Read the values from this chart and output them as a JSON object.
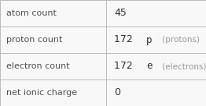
{
  "rows": [
    {
      "label": "atom count",
      "value_parts": [
        {
          "text": "45",
          "style": "normal",
          "color": "#303030"
        }
      ]
    },
    {
      "label": "proton count",
      "value_parts": [
        {
          "text": "172 ",
          "style": "normal",
          "color": "#303030"
        },
        {
          "text": "p",
          "style": "mono",
          "color": "#303030"
        },
        {
          "text": " (protons)",
          "style": "annotation",
          "color": "#999999"
        }
      ]
    },
    {
      "label": "electron count",
      "value_parts": [
        {
          "text": "172 ",
          "style": "normal",
          "color": "#303030"
        },
        {
          "text": "e",
          "style": "mono",
          "color": "#303030"
        },
        {
          "text": " (electrons)",
          "style": "annotation",
          "color": "#999999"
        }
      ]
    },
    {
      "label": "net ionic charge",
      "value_parts": [
        {
          "text": "0",
          "style": "normal",
          "color": "#303030"
        }
      ]
    }
  ],
  "col_split": 0.515,
  "background_color": "#f8f8f8",
  "cell_bg": "#f8f8f8",
  "grid_color": "#bbbbbb",
  "label_color": "#505050",
  "label_fontsize": 8.0,
  "value_fontsize": 9.0,
  "annotation_fontsize": 7.5,
  "mono_fontsize": 9.0
}
